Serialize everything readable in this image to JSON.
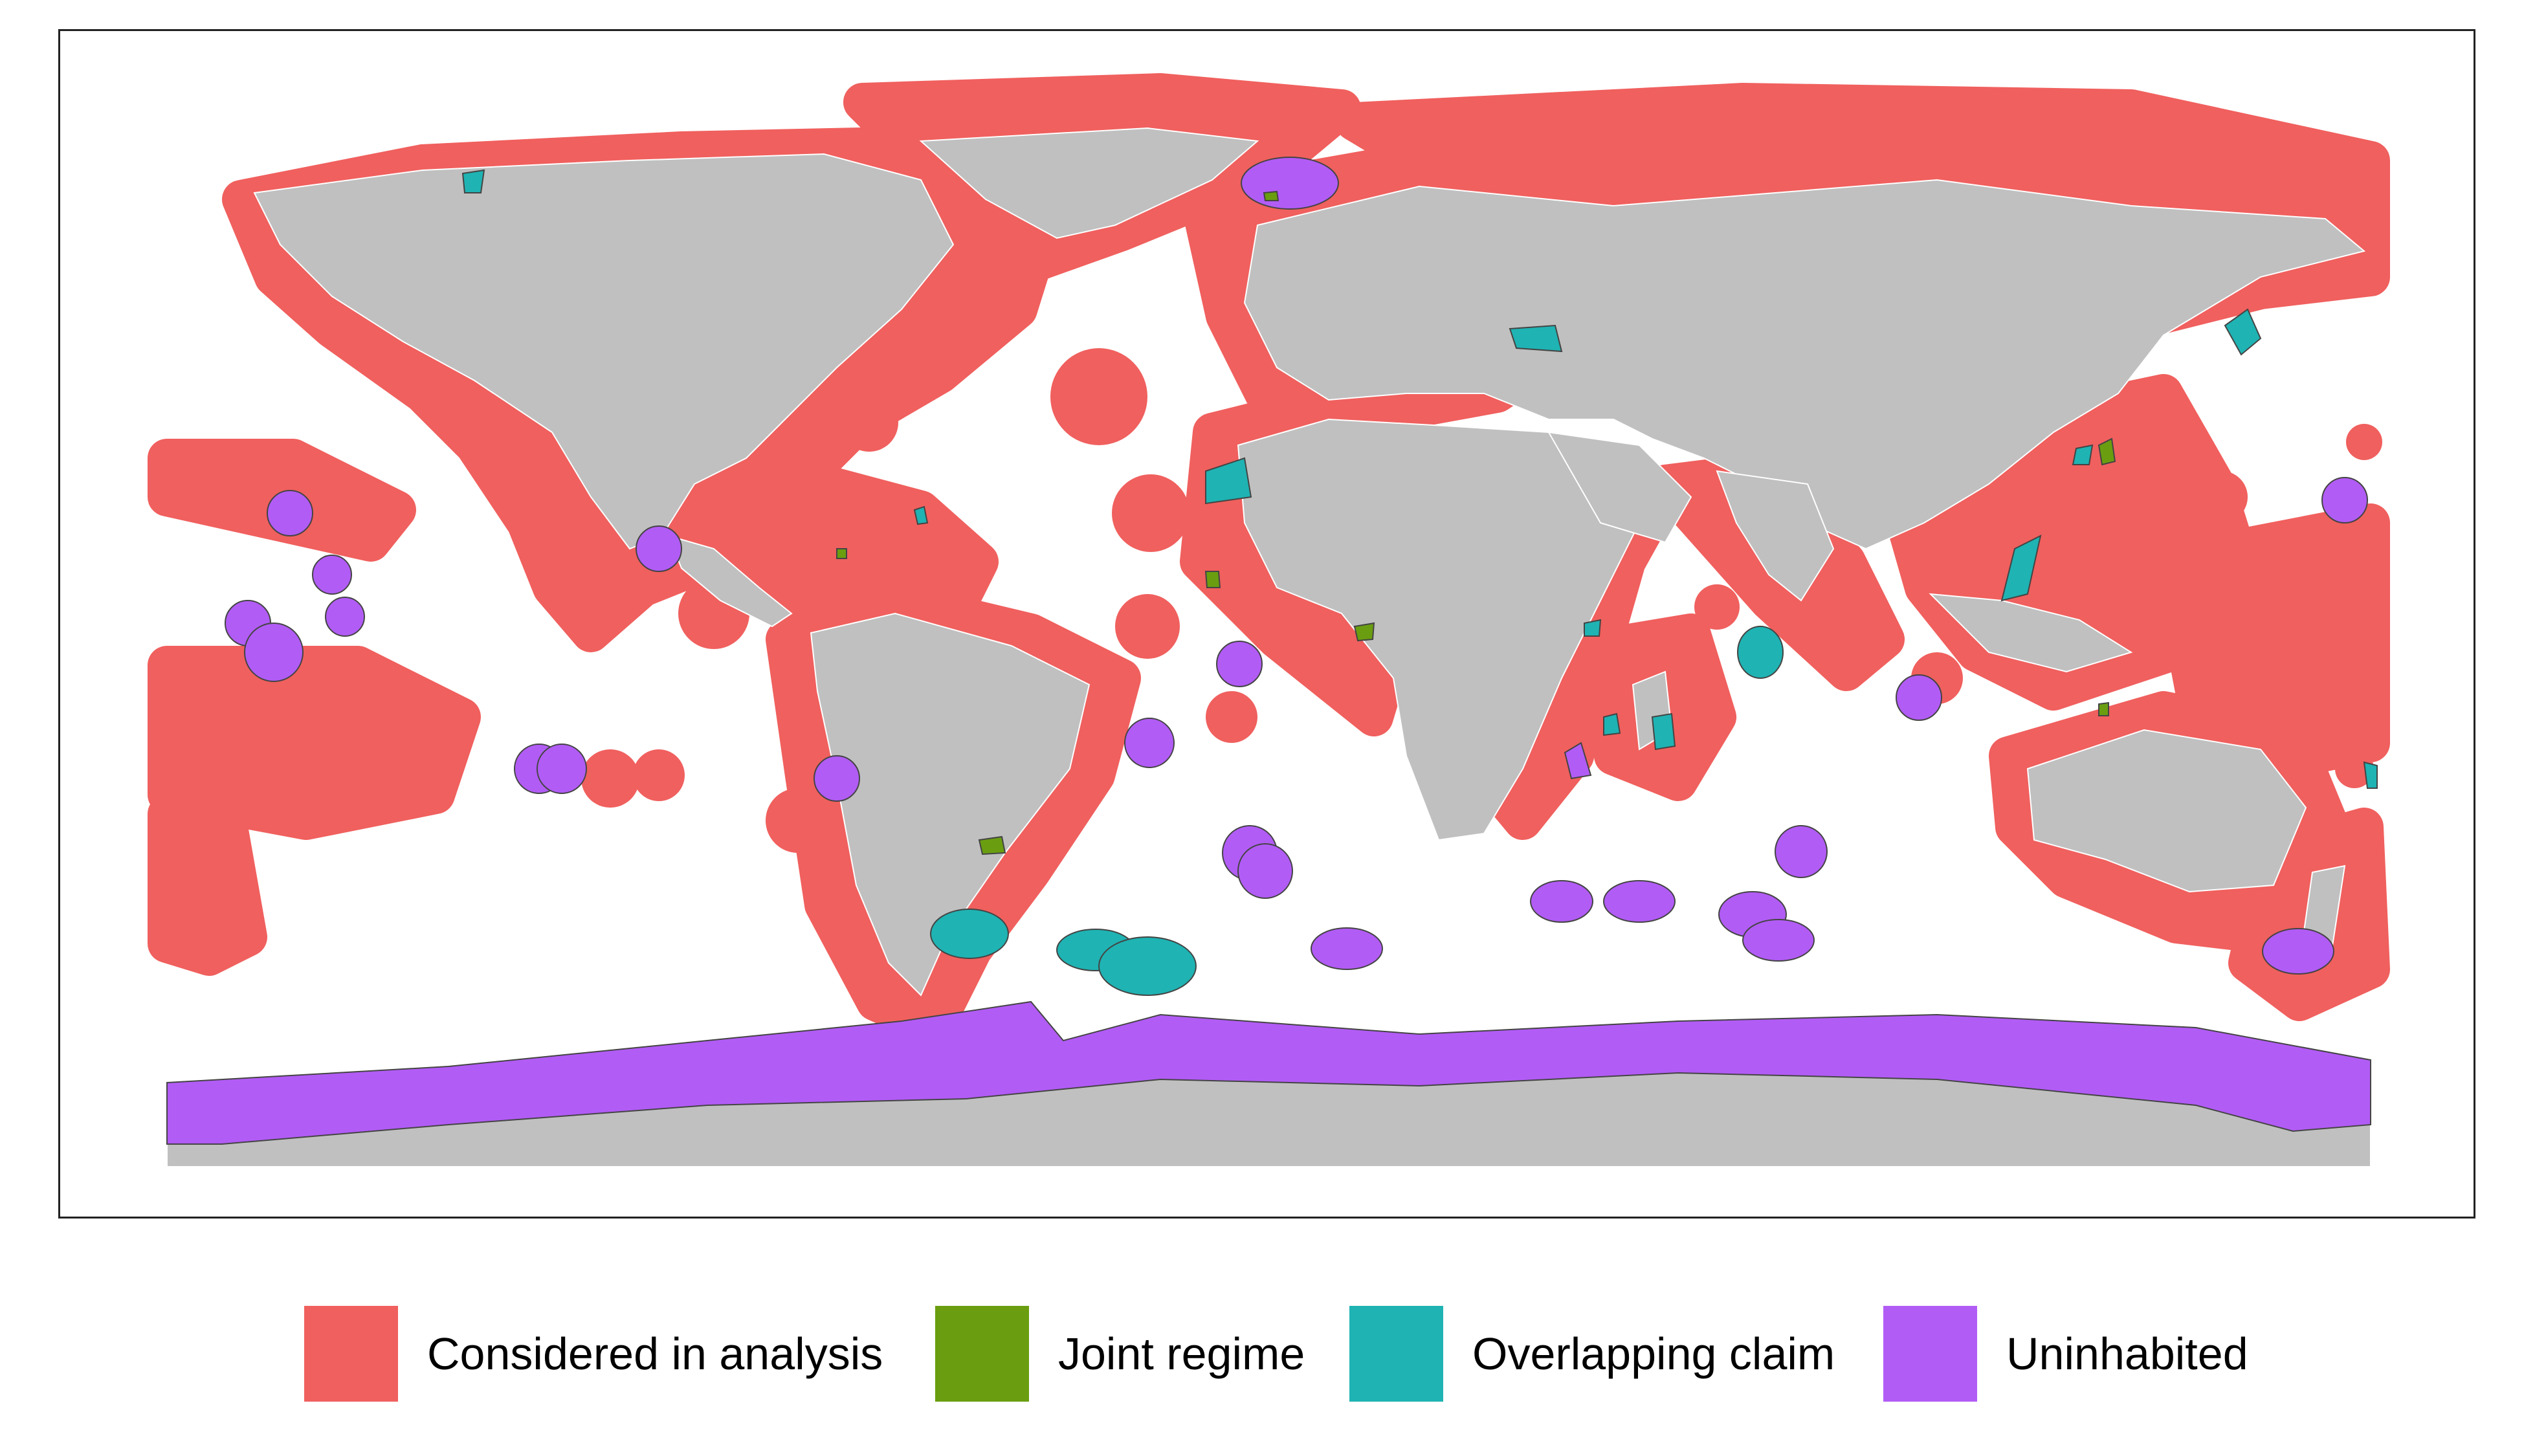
{
  "map": {
    "land_color": "#c0c0c0",
    "ocean_color": "#ffffff",
    "border_color": "#ffffff",
    "outline_color": "#333333"
  },
  "legend": {
    "items": [
      {
        "label": "Considered in analysis",
        "color": "#f0605e"
      },
      {
        "label": "Joint regime",
        "color": "#6a9e10"
      },
      {
        "label": "Overlapping claim",
        "color": "#1fb3b3"
      },
      {
        "label": "Uninhabited",
        "color": "#b25cf6"
      }
    ]
  }
}
